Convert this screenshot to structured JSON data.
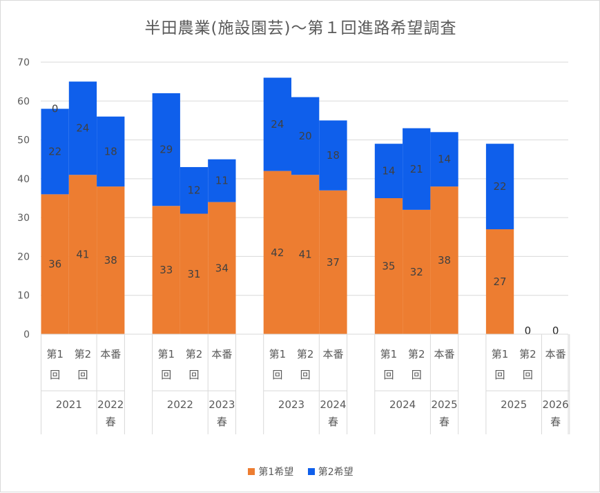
{
  "colors": {
    "first": "#ED7D31",
    "second": "#0F5FEB",
    "grid": "#d9d9d9",
    "text": "#595959",
    "label": "#404040"
  },
  "chart_data": {
    "type": "bar",
    "stacked": true,
    "title": "半田農業(施設園芸)～第１回進路希望調査",
    "ylim": [
      0,
      70
    ],
    "yticks": [
      0,
      10,
      20,
      30,
      40,
      50,
      60,
      70
    ],
    "grid": true,
    "legend_position": "bottom",
    "categories": [
      "2021 第1回",
      "2021 第2回",
      "2022春 本番",
      "2022 第1回",
      "2022 第2回",
      "2023春 本番",
      "2023 第1回",
      "2023 第2回",
      "2024春 本番",
      "2024 第1回",
      "2024 第2回",
      "2025春 本番",
      "2025 第1回",
      "2025 第2回",
      "2026春 本番"
    ],
    "category_labels": [
      [
        "第1",
        "回"
      ],
      [
        "第2",
        "回"
      ],
      [
        "本番"
      ],
      [
        "第1",
        "回"
      ],
      [
        "第2",
        "回"
      ],
      [
        "本番"
      ],
      [
        "第1",
        "回"
      ],
      [
        "第2",
        "回"
      ],
      [
        "本番"
      ],
      [
        "第1",
        "回"
      ],
      [
        "第2",
        "回"
      ],
      [
        "本番"
      ],
      [
        "第1",
        "回"
      ],
      [
        "第2",
        "回"
      ],
      [
        "本番"
      ]
    ],
    "group_labels": [
      [
        "2021"
      ],
      [
        "2022",
        "春"
      ],
      [
        "2022"
      ],
      [
        "2023",
        "春"
      ],
      [
        "2023"
      ],
      [
        "2024",
        "春"
      ],
      [
        "2024"
      ],
      [
        "2025",
        "春"
      ],
      [
        "2025"
      ],
      [
        "2026",
        "春"
      ]
    ],
    "series": [
      {
        "name": "第1希望",
        "values": [
          36,
          41,
          38,
          33,
          31,
          34,
          42,
          41,
          37,
          35,
          32,
          38,
          27,
          null,
          null
        ]
      },
      {
        "name": "第2希望",
        "values": [
          22,
          24,
          18,
          29,
          12,
          11,
          24,
          20,
          18,
          14,
          21,
          14,
          22,
          null,
          null
        ]
      }
    ],
    "annotations": [
      {
        "category": 0,
        "text": "0"
      },
      {
        "category": 13,
        "text": "0"
      },
      {
        "category": 14,
        "text": "0"
      }
    ]
  }
}
